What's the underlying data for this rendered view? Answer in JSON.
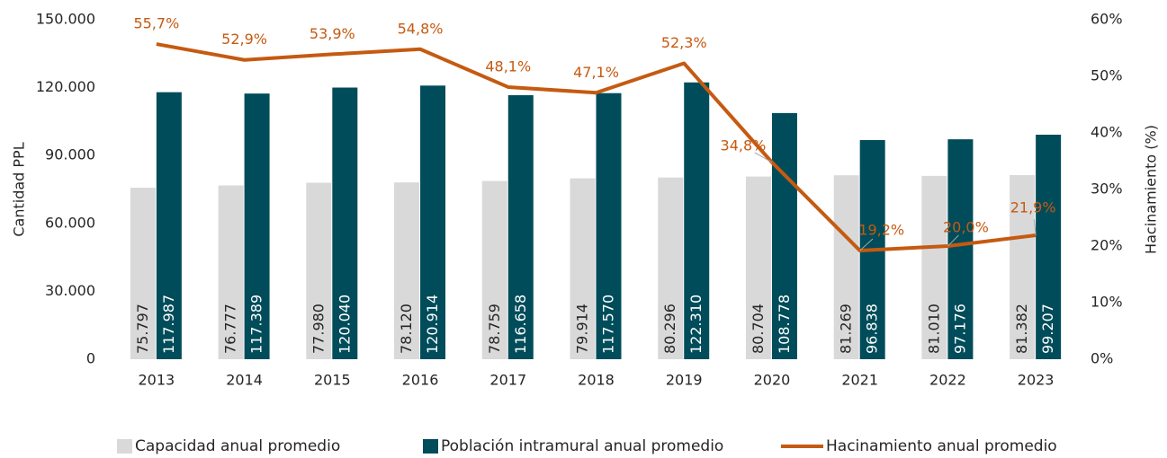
{
  "chart_data": {
    "type": "bar_line",
    "y_label": "Cantidad PPL",
    "y2_label": "Hacinamiento (%)",
    "categories": [
      "2013",
      "2014",
      "2015",
      "2016",
      "2017",
      "2018",
      "2019",
      "2020",
      "2021",
      "2022",
      "2023"
    ],
    "series": [
      {
        "name": "Capacidad anual promedio",
        "type": "bar",
        "color": "#d9d9d9",
        "label_color": "#262626",
        "values": [
          75797,
          76777,
          77980,
          78120,
          78759,
          79914,
          80296,
          80704,
          81269,
          81010,
          81382
        ],
        "value_labels": [
          "75.797",
          "76.777",
          "77.980",
          "78.120",
          "78.759",
          "79.914",
          "80.296",
          "80.704",
          "81.269",
          "81.010",
          "81.382"
        ]
      },
      {
        "name": "Población intramural anual promedio",
        "type": "bar",
        "color": "#004c5a",
        "label_color": "#ffffff",
        "values": [
          117987,
          117389,
          120040,
          120914,
          116658,
          117570,
          122310,
          108778,
          96838,
          97176,
          99207
        ],
        "value_labels": [
          "117.987",
          "117.389",
          "120.040",
          "120.914",
          "116.658",
          "117.570",
          "122.310",
          "108.778",
          "96.838",
          "97.176",
          "99.207"
        ]
      },
      {
        "name": "Hacinamiento anual promedio",
        "type": "line",
        "axis": "y2",
        "color": "#c55a11",
        "values": [
          55.7,
          52.9,
          53.9,
          54.8,
          48.1,
          47.1,
          52.3,
          34.8,
          19.2,
          20.0,
          21.9
        ],
        "value_labels": [
          "55,7%",
          "52,9%",
          "53,9%",
          "54,8%",
          "48,1%",
          "47,1%",
          "52,3%",
          "34,8%",
          "19,2%",
          "20,0%",
          "21,9%"
        ]
      }
    ],
    "ylim": [
      0,
      150000
    ],
    "yticks": [
      0,
      {
        "value": 30000,
        "label": "30.000"
      },
      {
        "value": 60000,
        "label": "60.000"
      },
      {
        "value": 90000,
        "label": "90.000"
      },
      {
        "value": 120000,
        "label": "120.000"
      },
      {
        "value": 150000,
        "label": "150.000"
      }
    ],
    "y2lim": [
      0,
      60
    ],
    "y2ticks": [
      {
        "value": 0,
        "label": "0%"
      },
      {
        "value": 10,
        "label": "10%"
      },
      {
        "value": 20,
        "label": "20%"
      },
      {
        "value": 30,
        "label": "30%"
      },
      {
        "value": 40,
        "label": "40%"
      },
      {
        "value": 50,
        "label": "50%"
      },
      {
        "value": 60,
        "label": "60%"
      }
    ],
    "grid": false,
    "legend": "bottom"
  }
}
